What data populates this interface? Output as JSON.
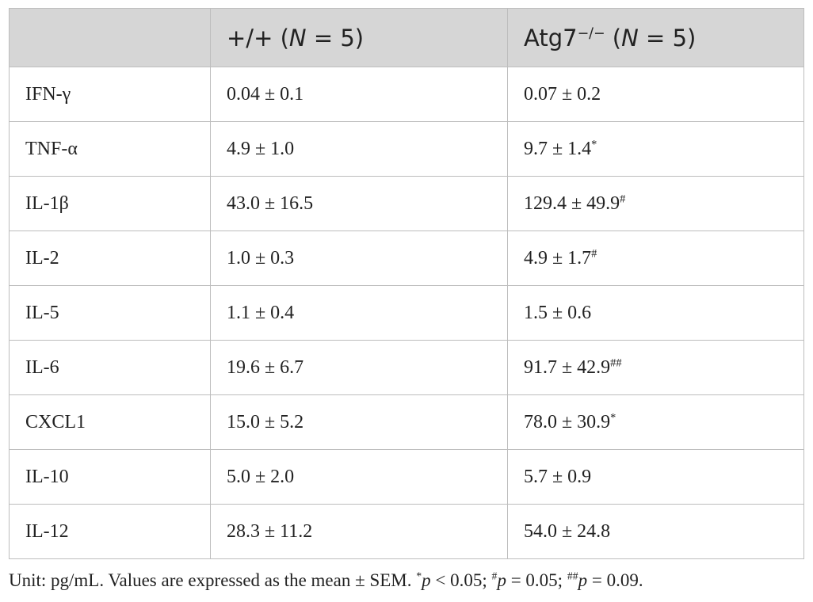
{
  "table": {
    "header": [
      [
        {
          "text": "+/+ ("
        },
        {
          "text": "N",
          "style": "italic"
        },
        {
          "text": " = 5)"
        }
      ],
      [
        {
          "text": "Atg7"
        },
        {
          "text": "−/−",
          "style": "sup"
        },
        {
          "text": " ("
        },
        {
          "text": "N",
          "style": "italic"
        },
        {
          "text": " = 5)"
        }
      ]
    ],
    "rows": [
      {
        "cells": [
          "IFN-γ",
          "0.04 ± 0.1",
          "0.07 ± 0.2"
        ]
      },
      {
        "cells": [
          "TNF-α",
          "4.9 ± 1.0",
          "9.7 ± 1.4"
        ],
        "sup": "*"
      },
      {
        "cells": [
          "IL-1β",
          "43.0 ± 16.5",
          "129.4 ± 49.9"
        ],
        "sup": "#"
      },
      {
        "cells": [
          "IL-2",
          "1.0 ± 0.3",
          "4.9 ± 1.7"
        ],
        "sup": "#"
      },
      {
        "cells": [
          "IL-5",
          "1.1 ± 0.4",
          "1.5 ± 0.6"
        ]
      },
      {
        "cells": [
          "IL-6",
          "19.6 ± 6.7",
          "91.7 ± 42.9"
        ],
        "sup": "##"
      },
      {
        "cells": [
          "CXCL1",
          "15.0 ± 5.2",
          "78.0 ± 30.9"
        ],
        "sup": "*"
      },
      {
        "cells": [
          "IL-10",
          "5.0 ± 2.0",
          "5.7 ± 0.9"
        ]
      },
      {
        "cells": [
          "IL-12",
          "28.3 ± 11.2",
          "54.0 ± 24.8"
        ]
      }
    ]
  },
  "footnote": [
    {
      "text": "Unit: pg/mL. Values are expressed as the mean ± SEM. "
    },
    {
      "text": "*",
      "style": "sup"
    },
    {
      "text": "p",
      "style": "italic"
    },
    {
      "text": " < 0.05; "
    },
    {
      "text": "#",
      "style": "sup"
    },
    {
      "text": "p",
      "style": "italic"
    },
    {
      "text": " = 0.05; "
    },
    {
      "text": "##",
      "style": "sup"
    },
    {
      "text": "p",
      "style": "italic"
    },
    {
      "text": " = 0.09."
    }
  ]
}
